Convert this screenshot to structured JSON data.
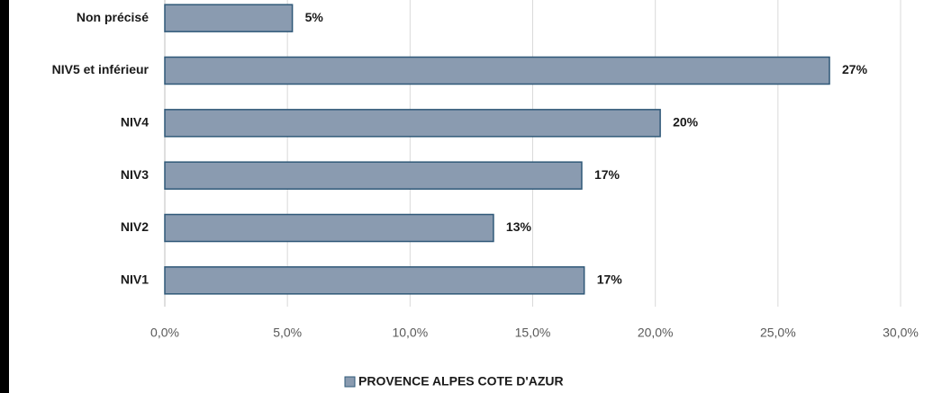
{
  "chart_data": {
    "type": "barh",
    "categories": [
      "Non précisé",
      "NIV5 et inférieur",
      "NIV4",
      "NIV3",
      "NIV2",
      "NIV1"
    ],
    "series": [
      {
        "name": "PROVENCE ALPES COTE D'AZUR",
        "color": "#8a9bb0",
        "values": [
          5.2,
          27.1,
          20.2,
          17.0,
          13.4,
          17.1
        ],
        "value_labels": [
          "5%",
          "27%",
          "20%",
          "17%",
          "13%",
          "17%"
        ]
      }
    ],
    "xlim": [
      0,
      30
    ],
    "xticks": [
      {
        "value": 0,
        "label": "0,0%"
      },
      {
        "value": 5,
        "label": "5,0%"
      },
      {
        "value": 10,
        "label": "10,0%"
      },
      {
        "value": 15,
        "label": "15,0%"
      },
      {
        "value": 20,
        "label": "20,0%"
      },
      {
        "value": 25,
        "label": "25,0%"
      },
      {
        "value": 30,
        "label": "30,0%"
      }
    ],
    "grid": true,
    "legend": "bottom"
  }
}
